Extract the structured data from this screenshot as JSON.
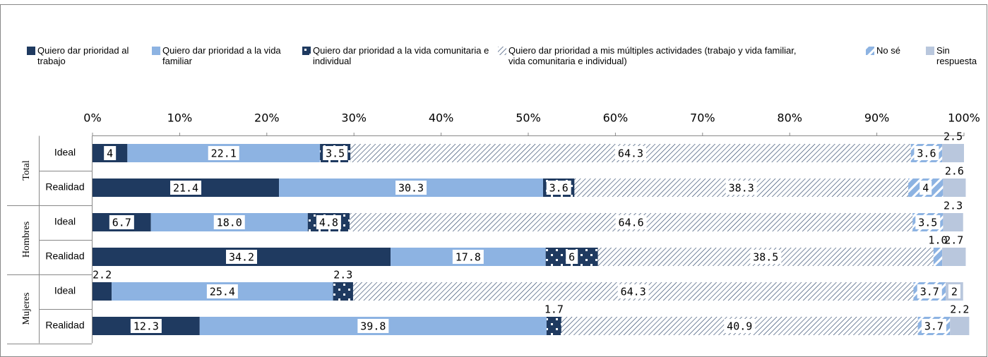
{
  "chart_data": {
    "type": "stacked-bar-horizontal",
    "groups": [
      "Total",
      "Hombres",
      "Mujeres"
    ],
    "categories": [
      "Ideal",
      "Realidad",
      "Ideal",
      "Realidad",
      "Ideal",
      "Realidad"
    ],
    "xlim": [
      0,
      100
    ],
    "xticks": [
      {
        "value": 0,
        "label": "0%"
      },
      {
        "value": 10,
        "label": "10%"
      },
      {
        "value": 20,
        "label": "20%"
      },
      {
        "value": 30,
        "label": "30%"
      },
      {
        "value": 40,
        "label": "40%"
      },
      {
        "value": 50,
        "label": "50%"
      },
      {
        "value": 60,
        "label": "60%"
      },
      {
        "value": 70,
        "label": "70%"
      },
      {
        "value": 80,
        "label": "80%"
      },
      {
        "value": 90,
        "label": "90%"
      },
      {
        "value": 100,
        "label": "100%"
      }
    ],
    "legend": "top",
    "series": [
      {
        "name": "Quiero dar prioridad al trabajo",
        "color": "#1f3a60",
        "pattern": "solid",
        "values": [
          4,
          21.4,
          6.7,
          34.2,
          2.2,
          12.3
        ]
      },
      {
        "name": "Quiero dar prioridad a la vida familiar",
        "color": "#8db3e2",
        "pattern": "solid",
        "values": [
          22.1,
          30.3,
          18.0,
          17.8,
          25.4,
          39.8
        ],
        "value_labels": [
          "22.1",
          "30.3",
          "18.0",
          "17.8",
          "25.4",
          "39.8"
        ]
      },
      {
        "name": "Quiero dar prioridad a la vida comunitaria e individual",
        "color": "#1f3a60",
        "pattern": "dots",
        "values": [
          3.5,
          3.6,
          4.8,
          6,
          2.3,
          1.7
        ]
      },
      {
        "name": "Quiero dar prioridad a mis múltiples actividades (trabajo y vida familiar, vida comunitaria e individual)",
        "color": "#1f3a60",
        "pattern": "hatch",
        "values": [
          64.3,
          38.3,
          64.6,
          38.5,
          64.3,
          40.9
        ]
      },
      {
        "name": "No sé",
        "color": "#8db3e2",
        "pattern": "stripes",
        "values": [
          3.6,
          4,
          3.5,
          1.0,
          3.7,
          3.7
        ],
        "value_labels": [
          "3.6",
          "4",
          "3.5",
          "1.0",
          "3.7",
          "3.7"
        ]
      },
      {
        "name": "Sin respuesta",
        "color": "#b9c7dd",
        "pattern": "solid",
        "values": [
          2.5,
          2.6,
          2.3,
          2.7,
          2,
          2.2
        ]
      }
    ]
  }
}
